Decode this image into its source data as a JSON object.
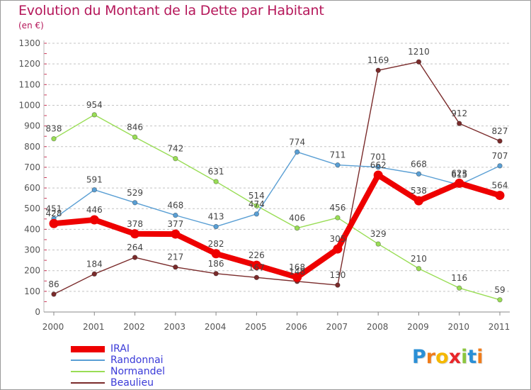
{
  "title": "Evolution du Montant de la Dette par Habitant",
  "subtitle": "(en €)",
  "chart_data": {
    "type": "line",
    "title": "Evolution du Montant de la Dette par Habitant",
    "subtitle": "(en €)",
    "xlabel": "",
    "ylabel": "",
    "ylim": [
      0,
      1300
    ],
    "yticks": [
      0,
      100,
      200,
      300,
      400,
      500,
      600,
      700,
      800,
      900,
      1000,
      1100,
      1200,
      1300
    ],
    "categories": [
      "2000",
      "2001",
      "2002",
      "2003",
      "2004",
      "2005",
      "2006",
      "2007",
      "2008",
      "2009",
      "2010",
      "2011"
    ],
    "grid": "horizontal dashed",
    "legend_position": "bottom-left",
    "series": [
      {
        "name": "IRAI",
        "color": "#ee0000",
        "values": [
          428,
          446,
          378,
          377,
          282,
          226,
          168,
          305,
          662,
          538,
          623,
          564
        ]
      },
      {
        "name": "Randonnai",
        "color": "#5a9fd4",
        "values": [
          451,
          591,
          529,
          468,
          413,
          474,
          774,
          711,
          701,
          668,
          615,
          707
        ]
      },
      {
        "name": "Normandel",
        "color": "#99dd55",
        "values": [
          838,
          954,
          846,
          742,
          631,
          514,
          406,
          456,
          329,
          210,
          116,
          59
        ]
      },
      {
        "name": "Beaulieu",
        "color": "#7a2b2b",
        "values": [
          86,
          184,
          264,
          217,
          186,
          167,
          148,
          130,
          1169,
          1210,
          912,
          827
        ]
      }
    ]
  },
  "logo": {
    "text": "Proxiti",
    "letters": [
      "P",
      "r",
      "o",
      "x",
      "i",
      "t",
      "i"
    ],
    "colors": [
      "#2a8fd6",
      "#f07c1a",
      "#f5b800",
      "#e8262a",
      "#8cc63f",
      "#2a8fd6",
      "#f07c1a"
    ]
  }
}
